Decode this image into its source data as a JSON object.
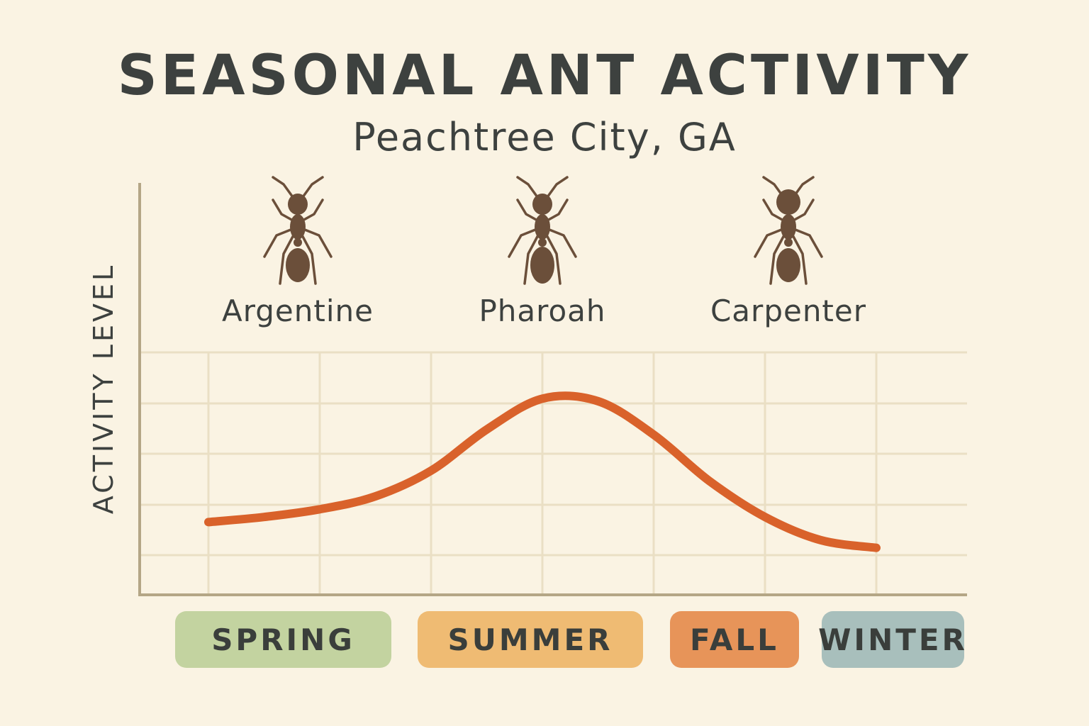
{
  "chart_data": {
    "type": "line",
    "title": "SEASONAL ANT ACTIVITY",
    "subtitle": "Peachtree City, GA",
    "ylabel": "ACTIVITY LEVEL",
    "xlabel": "",
    "x": [
      0,
      1,
      2,
      3,
      4,
      5,
      6,
      7,
      8,
      9,
      10,
      11,
      12
    ],
    "series": [
      {
        "values": [
          1.4,
          1.5,
          1.65,
          1.9,
          2.4,
          3.2,
          3.8,
          3.75,
          3.1,
          2.2,
          1.5,
          1.05,
          0.9
        ],
        "color": "#d9622b"
      }
    ],
    "xlim": [
      0,
      12
    ],
    "ylim": [
      0,
      4.7
    ],
    "grid": true,
    "ant_types": [
      {
        "name": "Argentine",
        "icon": "ant-icon"
      },
      {
        "name": "Pharoah",
        "icon": "ant-icon"
      },
      {
        "name": "Carpenter",
        "icon": "ant-icon"
      }
    ],
    "seasons": [
      {
        "label": "SPRING",
        "color": "#c3d3a0"
      },
      {
        "label": "SUMMER",
        "color": "#efbb73"
      },
      {
        "label": "FALL",
        "color": "#e79459"
      },
      {
        "label": "WINTER",
        "color": "#a8bfbc"
      }
    ]
  },
  "colors": {
    "background": "#faf3e3",
    "grid": "#eadfc4",
    "axis": "#b4a686",
    "ant": "#6b4f3a",
    "text": "#3d413f"
  }
}
